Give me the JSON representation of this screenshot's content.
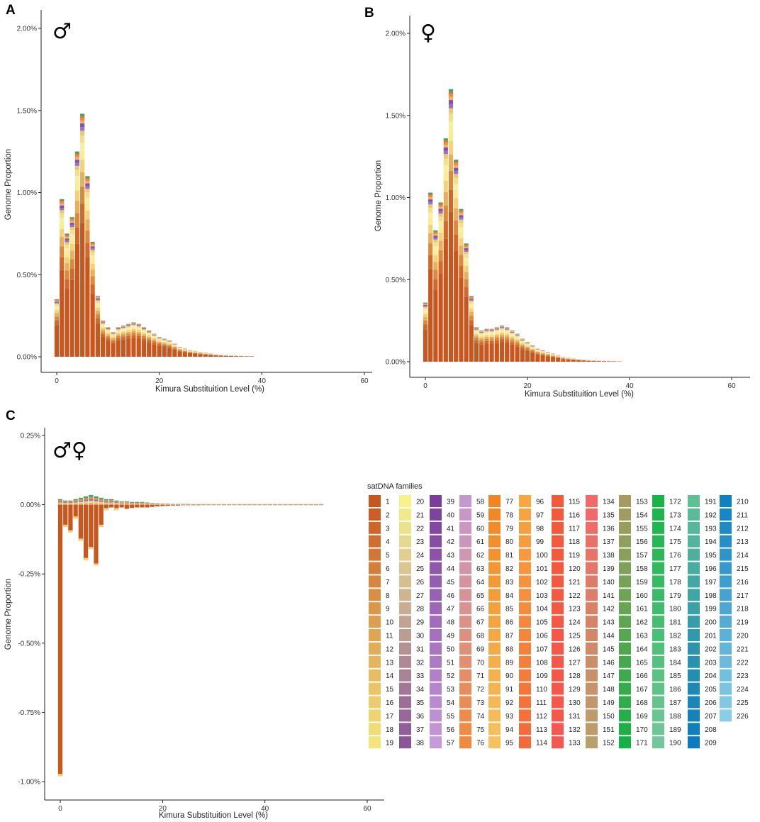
{
  "chart_data": [
    {
      "panel": "A",
      "type": "bar",
      "stacked": true,
      "symbol": "♂",
      "xlabel": "Kimura Substituition Level (%)",
      "ylabel": "Genome Proportion",
      "xlim": [
        0,
        60
      ],
      "ylim": [
        0,
        2.0
      ],
      "xticks": [
        "0",
        "20",
        "40",
        "60"
      ],
      "yticks": [
        "0.00%",
        "0.50%",
        "1.00%",
        "1.50%",
        "2.00%"
      ],
      "x": [
        0,
        1,
        2,
        3,
        4,
        5,
        6,
        7,
        8,
        9,
        10,
        11,
        12,
        13,
        14,
        15,
        16,
        17,
        18,
        19,
        20,
        21,
        22,
        23,
        24,
        25,
        26,
        27,
        28,
        29,
        30,
        31,
        32,
        33,
        34,
        35,
        36,
        37,
        38
      ],
      "values": [
        0.35,
        0.96,
        0.75,
        0.85,
        1.25,
        1.48,
        1.1,
        0.7,
        0.37,
        0.22,
        0.18,
        0.15,
        0.18,
        0.19,
        0.2,
        0.21,
        0.2,
        0.18,
        0.16,
        0.14,
        0.12,
        0.11,
        0.1,
        0.08,
        0.06,
        0.05,
        0.04,
        0.035,
        0.03,
        0.025,
        0.02,
        0.015,
        0.012,
        0.01,
        0.008,
        0.007,
        0.006,
        0.005,
        0.004
      ]
    },
    {
      "panel": "B",
      "type": "bar",
      "stacked": true,
      "symbol": "♀",
      "xlabel": "Kimura Substituition Level (%)",
      "ylabel": "Genome Proportion",
      "xlim": [
        0,
        60
      ],
      "ylim": [
        0,
        2.0
      ],
      "xticks": [
        "0",
        "20",
        "40",
        "60"
      ],
      "yticks": [
        "0.00%",
        "0.50%",
        "1.00%",
        "1.50%",
        "2.00%"
      ],
      "x": [
        0,
        1,
        2,
        3,
        4,
        5,
        6,
        7,
        8,
        9,
        10,
        11,
        12,
        13,
        14,
        15,
        16,
        17,
        18,
        19,
        20,
        21,
        22,
        23,
        24,
        25,
        26,
        27,
        28,
        29,
        30,
        31,
        32,
        33,
        34,
        35,
        36,
        37,
        38
      ],
      "values": [
        0.36,
        1.03,
        0.8,
        0.97,
        1.36,
        1.66,
        1.23,
        0.93,
        0.72,
        0.4,
        0.21,
        0.19,
        0.2,
        0.2,
        0.21,
        0.22,
        0.21,
        0.19,
        0.17,
        0.14,
        0.12,
        0.1,
        0.08,
        0.07,
        0.06,
        0.05,
        0.04,
        0.03,
        0.025,
        0.02,
        0.016,
        0.013,
        0.01,
        0.008,
        0.007,
        0.006,
        0.005,
        0.004,
        0.003
      ]
    },
    {
      "panel": "C",
      "type": "bar",
      "stacked": true,
      "symbol": "♂♀",
      "xlabel": "Kimura Substituition Level (%)",
      "ylabel": "Genome Proportion",
      "xlim": [
        0,
        60
      ],
      "ylim": [
        -1.0,
        0.25
      ],
      "xticks": [
        "0",
        "20",
        "40",
        "60"
      ],
      "yticks": [
        "-1.00%",
        "-0.75%",
        "-0.50%",
        "-0.25%",
        "0.00%",
        "0.25%"
      ],
      "x": [
        0,
        1,
        2,
        3,
        4,
        5,
        6,
        7,
        8,
        9,
        10,
        11,
        12,
        13,
        14,
        15,
        16,
        17,
        18,
        19,
        20,
        21,
        22,
        23,
        24,
        25,
        26,
        27,
        28,
        29,
        30,
        31,
        32,
        33,
        34,
        35,
        36,
        37,
        38,
        39,
        40,
        41,
        42,
        43,
        44,
        45,
        46,
        47,
        48,
        49,
        50,
        51
      ],
      "values": [
        -0.98,
        -0.08,
        -0.1,
        -0.05,
        -0.13,
        -0.2,
        -0.16,
        -0.22,
        -0.08,
        -0.02,
        -0.01,
        -0.02,
        -0.01,
        -0.015,
        -0.012,
        -0.01,
        -0.01,
        -0.01,
        -0.008,
        -0.006,
        -0.005,
        -0.004,
        -0.003,
        -0.003,
        -0.002,
        -0.002,
        -0.002,
        -0.002,
        -0.001,
        -0.001,
        -0.001,
        -0.001,
        -0.001,
        -0.001,
        -0.001,
        -0.001,
        -0.001,
        -0.001,
        -0.001,
        -0.001,
        -0.001,
        -0.001,
        -0.001,
        -0.001,
        -0.001,
        -0.001,
        -0.001,
        -0.001,
        -0.001,
        -0.001,
        -0.001,
        -0.001
      ],
      "positive_caps": [
        0.02,
        0.015,
        0.015,
        0.02,
        0.025,
        0.03,
        0.035,
        0.03,
        0.025,
        0.02,
        0.02,
        0.015,
        0.012,
        0.012,
        0.01,
        0.01,
        0.01,
        0.008,
        0.006,
        0.005,
        0.004,
        0.004,
        0.003,
        0.003,
        0.003,
        0.003,
        0.002,
        0.002,
        0.002,
        0.002,
        0.002,
        0.002,
        0.002,
        0.002,
        0.002,
        0.002,
        0.002,
        0.002,
        0.002,
        0.002,
        0.002,
        0.002,
        0.002,
        0.002,
        0.002,
        0.002,
        0.002,
        0.002,
        0.002,
        0.002,
        0.002,
        0.002
      ]
    }
  ],
  "legend": {
    "title": "satDNA families",
    "families": [
      "1",
      "2",
      "3",
      "4",
      "5",
      "6",
      "7",
      "8",
      "9",
      "10",
      "11",
      "12",
      "13",
      "14",
      "15",
      "16",
      "17",
      "18",
      "19",
      "20",
      "21",
      "22",
      "23",
      "24",
      "25",
      "26",
      "27",
      "28",
      "29",
      "30",
      "31",
      "32",
      "33",
      "34",
      "35",
      "36",
      "37",
      "38",
      "39",
      "40",
      "41",
      "42",
      "43",
      "44",
      "45",
      "46",
      "47",
      "48",
      "49",
      "50",
      "51",
      "52",
      "53",
      "54",
      "55",
      "56",
      "57",
      "58",
      "59",
      "60",
      "61",
      "62",
      "63",
      "64",
      "65",
      "66",
      "67",
      "68",
      "69",
      "70",
      "71",
      "72",
      "73",
      "74",
      "75",
      "76",
      "77",
      "78",
      "79",
      "80",
      "81",
      "82",
      "83",
      "84",
      "85",
      "86",
      "87",
      "88",
      "89",
      "90",
      "91",
      "92",
      "93",
      "94",
      "95",
      "96",
      "97",
      "98",
      "99",
      "100",
      "101",
      "102",
      "103",
      "104",
      "105",
      "106",
      "107",
      "108",
      "109",
      "110",
      "111",
      "112",
      "113",
      "114",
      "115",
      "116",
      "117",
      "118",
      "119",
      "120",
      "121",
      "122",
      "123",
      "124",
      "125",
      "126",
      "127",
      "128",
      "129",
      "130",
      "131",
      "132",
      "133",
      "134",
      "135",
      "136",
      "137",
      "138",
      "139",
      "140",
      "141",
      "142",
      "143",
      "144",
      "145",
      "146",
      "147",
      "148",
      "149",
      "150",
      "151",
      "152",
      "153",
      "154",
      "155",
      "156",
      "157",
      "158",
      "159",
      "160",
      "161",
      "162",
      "163",
      "164",
      "165",
      "166",
      "167",
      "168",
      "169",
      "170",
      "171",
      "172",
      "173",
      "174",
      "175",
      "176",
      "177",
      "178",
      "179",
      "180",
      "181",
      "182",
      "183",
      "184",
      "185",
      "186",
      "187",
      "188",
      "189",
      "190",
      "191",
      "192",
      "193",
      "194",
      "195",
      "196",
      "197",
      "198",
      "199",
      "200",
      "201",
      "202",
      "203",
      "204",
      "205",
      "206",
      "207",
      "208",
      "209",
      "210",
      "211",
      "212",
      "213",
      "214",
      "215",
      "216",
      "217",
      "218",
      "219",
      "220",
      "221",
      "222",
      "223",
      "224",
      "225",
      "226"
    ],
    "column_ranges": [
      [
        1,
        19
      ],
      [
        20,
        38
      ],
      [
        39,
        57
      ],
      [
        58,
        76
      ],
      [
        77,
        95
      ],
      [
        96,
        114
      ],
      [
        115,
        133
      ],
      [
        134,
        152
      ],
      [
        153,
        171
      ],
      [
        172,
        190
      ],
      [
        191,
        209
      ],
      [
        210,
        226
      ]
    ],
    "column_colors": [
      [
        "#c8561f",
        "#f2e57c"
      ],
      [
        "#f7f38c",
        "#8a5698"
      ],
      [
        "#7a3e9a",
        "#c79ad8"
      ],
      [
        "#c499d0",
        "#f08a3e"
      ],
      [
        "#f28522",
        "#f5c25e"
      ],
      [
        "#f7a640",
        "#f26a3a"
      ],
      [
        "#f35a3a",
        "#f6574f"
      ],
      [
        "#f36868",
        "#b8a06a"
      ],
      [
        "#a89b60",
        "#16b046"
      ],
      [
        "#18b447",
        "#73c79a"
      ],
      [
        "#5fbf96",
        "#0c7bbd"
      ],
      [
        "#0e82c0",
        "#8acde6"
      ]
    ]
  }
}
